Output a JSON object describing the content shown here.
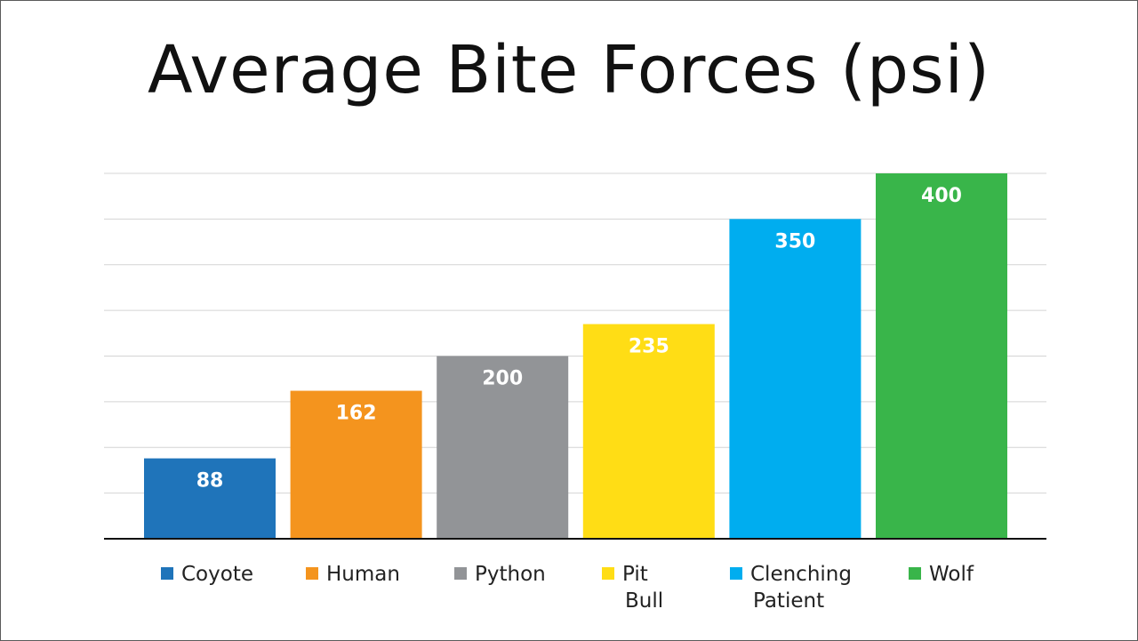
{
  "chart_data": {
    "type": "bar",
    "title": "Average Bite Forces (psi)",
    "categories": [
      "Coyote",
      "Human",
      "Python",
      "Pit Bull",
      "Clenching Patient",
      "Wolf"
    ],
    "values": [
      88,
      162,
      200,
      235,
      350,
      400
    ],
    "colors": [
      "#1f74ba",
      "#f4941e",
      "#929497",
      "#ffdd15",
      "#00adef",
      "#39b54a"
    ],
    "ylim": [
      0,
      400
    ],
    "grid": true,
    "legend": "bottom",
    "xlabel": "",
    "ylabel": ""
  }
}
